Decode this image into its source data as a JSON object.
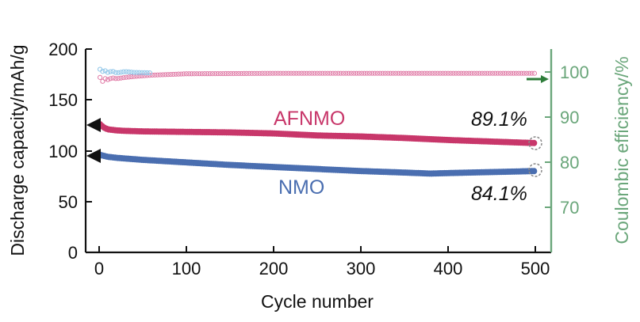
{
  "chart_data": {
    "type": "line",
    "xlabel": "Cycle number",
    "ylabel": "Discharge capacity/mAh/g",
    "y2label": "Coulombic efficiency/%",
    "xlim": [
      -12,
      518
    ],
    "ylim": [
      0,
      200
    ],
    "y2lim": [
      60,
      105
    ],
    "xticks": [
      "0",
      "100",
      "200",
      "300",
      "400",
      "500"
    ],
    "yticks": [
      "0",
      "50",
      "100",
      "150",
      "200"
    ],
    "y2ticks": [
      "70",
      "80",
      "90",
      "100"
    ],
    "colors": {
      "afnmo": "#c8376a",
      "nmo": "#4a6eb0",
      "efficiency": "#e07aa6",
      "efficiency_nmo": "#8ec5e8",
      "right_axis": "#6aa67a",
      "axis": "#111111"
    },
    "series": [
      {
        "name": "AFNMO",
        "axis": "left",
        "x": [
          1,
          5,
          10,
          20,
          30,
          50,
          100,
          150,
          200,
          250,
          300,
          350,
          400,
          450,
          500
        ],
        "values": [
          126,
          123,
          121,
          120,
          119.5,
          119,
          118.5,
          118,
          117,
          115,
          114,
          112.5,
          110.5,
          109,
          107.5
        ]
      },
      {
        "name": "NMO",
        "axis": "left",
        "x": [
          1,
          5,
          10,
          20,
          50,
          100,
          150,
          200,
          250,
          300,
          350,
          380,
          400,
          450,
          500
        ],
        "values": [
          96,
          95,
          94,
          93,
          91,
          88.5,
          86,
          84,
          82,
          80,
          78.5,
          77.5,
          78,
          79,
          80
        ]
      },
      {
        "name": "AFNMO Coulombic efficiency",
        "axis": "right",
        "x": [
          1,
          3,
          6,
          10,
          15,
          20,
          30,
          40,
          60,
          100,
          200,
          300,
          400,
          500
        ],
        "values": [
          98.8,
          97.6,
          98.6,
          98.3,
          98.7,
          98.5,
          98.8,
          99.0,
          99.3,
          99.6,
          99.7,
          99.7,
          99.7,
          99.7
        ]
      },
      {
        "name": "NMO Coulombic efficiency",
        "axis": "right",
        "x": [
          1,
          3,
          6,
          10,
          15,
          20,
          30,
          40,
          60
        ],
        "values": [
          100.6,
          100.0,
          100.4,
          99.9,
          100.2,
          99.8,
          100.1,
          99.9,
          99.8
        ]
      }
    ],
    "labels": {
      "afnmo": "AFNMO",
      "nmo": "NMO",
      "afnmo_retention": "89.1%",
      "nmo_retention": "84.1%"
    }
  }
}
